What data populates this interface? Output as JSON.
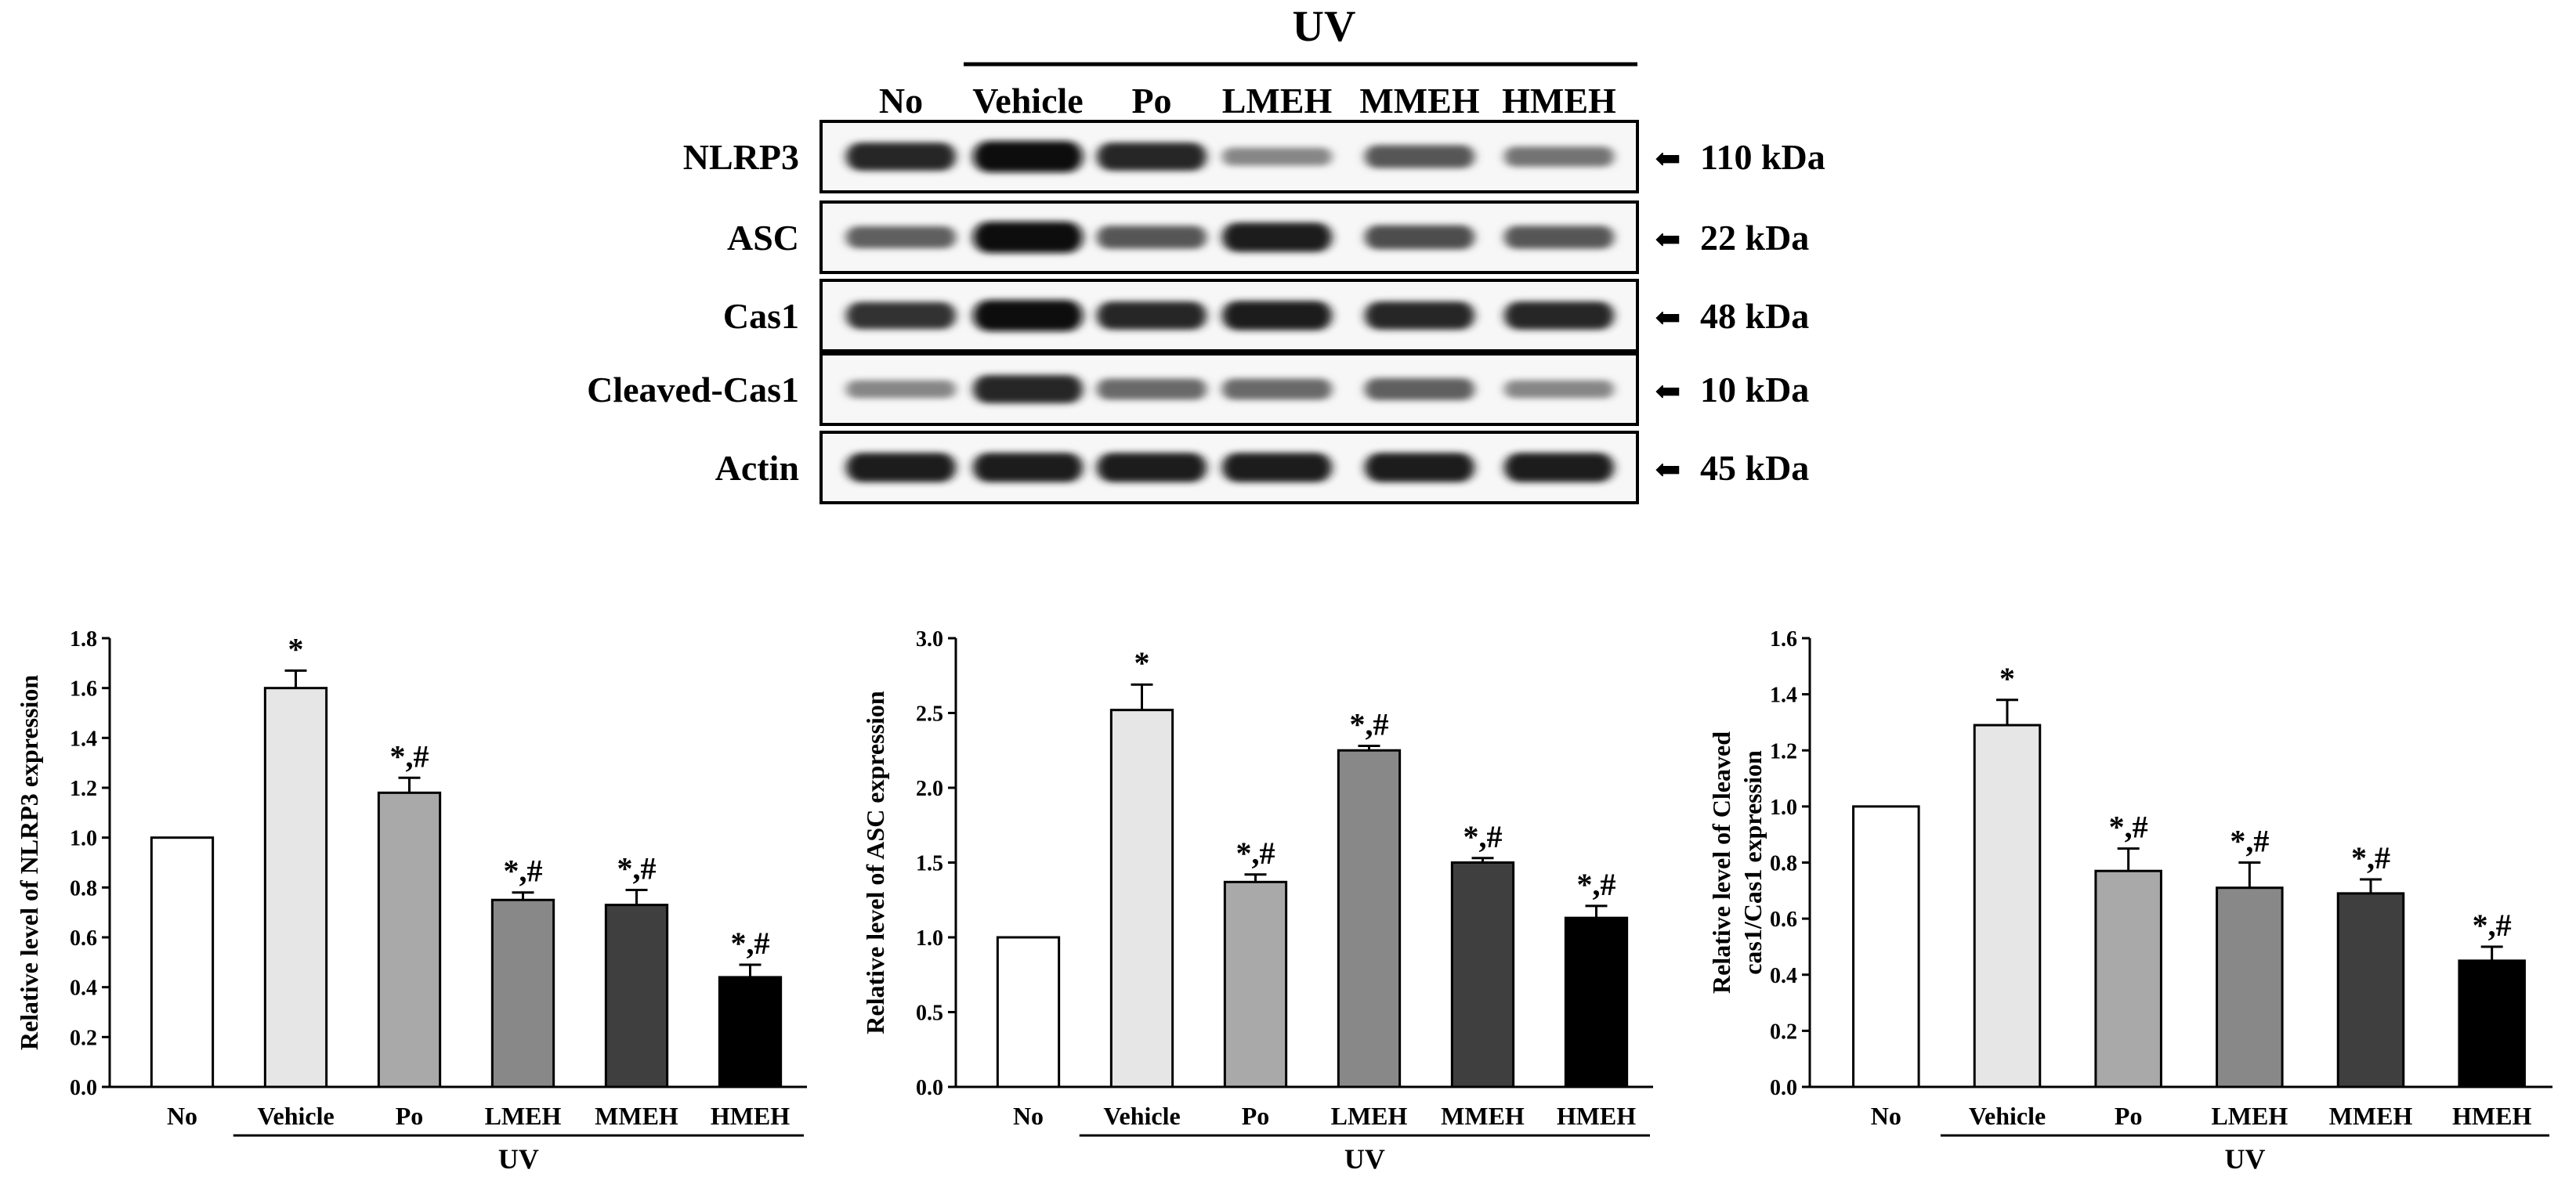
{
  "blot": {
    "uv_label": "UV",
    "lanes": [
      "No",
      "Vehicle",
      "Po",
      "LMEH",
      "MMEH",
      "HMEH"
    ],
    "rows": [
      {
        "name": "NLRP3",
        "size": "110 kDa",
        "intensity": [
          0.85,
          1.0,
          0.85,
          0.35,
          0.6,
          0.45
        ]
      },
      {
        "name": "ASC",
        "size": "22 kDa",
        "intensity": [
          0.55,
          1.0,
          0.6,
          0.9,
          0.65,
          0.6
        ]
      },
      {
        "name": "Cas1",
        "size": "48 kDa",
        "intensity": [
          0.8,
          1.0,
          0.85,
          0.9,
          0.85,
          0.85
        ]
      },
      {
        "name": "Cleaved-Cas1",
        "size": "10 kDa",
        "intensity": [
          0.35,
          0.85,
          0.5,
          0.5,
          0.55,
          0.35
        ]
      },
      {
        "name": "Actin",
        "size": "45 kDa",
        "intensity": [
          0.9,
          0.9,
          0.9,
          0.9,
          0.9,
          0.9
        ]
      }
    ],
    "arrow": "⬅"
  },
  "chart_data": [
    {
      "type": "bar",
      "categories": [
        "No",
        "Vehicle",
        "Po",
        "LMEH",
        "MMEH",
        "HMEH"
      ],
      "values": [
        1.0,
        1.6,
        1.18,
        0.75,
        0.73,
        0.44
      ],
      "errors": [
        0,
        0.07,
        0.06,
        0.03,
        0.06,
        0.05
      ],
      "annotations": [
        "",
        "*",
        "*,#",
        "*,#",
        "*,#",
        "*,#"
      ],
      "fills": [
        "#ffffff",
        "#e6e6e6",
        "#a9a9a9",
        "#888888",
        "#3f3f3f",
        "#000000"
      ],
      "ylabel": "Relative level of NLRP3 expression",
      "xgroup_label": "UV",
      "ylim": [
        0,
        1.8
      ],
      "yticks": [
        "0.0",
        "0.2",
        "0.4",
        "0.6",
        "0.8",
        "1.0",
        "1.2",
        "1.4",
        "1.6",
        "1.8"
      ]
    },
    {
      "type": "bar",
      "categories": [
        "No",
        "Vehicle",
        "Po",
        "LMEH",
        "MMEH",
        "HMEH"
      ],
      "values": [
        1.0,
        2.52,
        1.37,
        2.25,
        1.5,
        1.13
      ],
      "errors": [
        0,
        0.17,
        0.05,
        0.03,
        0.03,
        0.08
      ],
      "annotations": [
        "",
        "*",
        "*,#",
        "*,#",
        "*,#",
        "*,#"
      ],
      "fills": [
        "#ffffff",
        "#e6e6e6",
        "#a9a9a9",
        "#888888",
        "#3f3f3f",
        "#000000"
      ],
      "ylabel": "Relative level of ASC expression",
      "xgroup_label": "UV",
      "ylim": [
        0,
        3.0
      ],
      "yticks": [
        "0.0",
        "0.5",
        "1.0",
        "1.5",
        "2.0",
        "2.5",
        "3.0"
      ]
    },
    {
      "type": "bar",
      "categories": [
        "No",
        "Vehicle",
        "Po",
        "LMEH",
        "MMEH",
        "HMEH"
      ],
      "values": [
        1.0,
        1.29,
        0.77,
        0.71,
        0.69,
        0.45
      ],
      "errors": [
        0,
        0.09,
        0.08,
        0.09,
        0.05,
        0.05
      ],
      "annotations": [
        "",
        "*",
        "*,#",
        "*,#",
        "*,#",
        "*,#"
      ],
      "fills": [
        "#ffffff",
        "#e6e6e6",
        "#a9a9a9",
        "#888888",
        "#3f3f3f",
        "#000000"
      ],
      "ylabel": [
        "Relative level of Cleaved",
        "cas1/Cas1 expression"
      ],
      "xgroup_label": "UV",
      "ylim": [
        0,
        1.6
      ],
      "yticks": [
        "0.0",
        "0.2",
        "0.4",
        "0.6",
        "0.8",
        "1.0",
        "1.2",
        "1.4",
        "1.6"
      ]
    }
  ]
}
